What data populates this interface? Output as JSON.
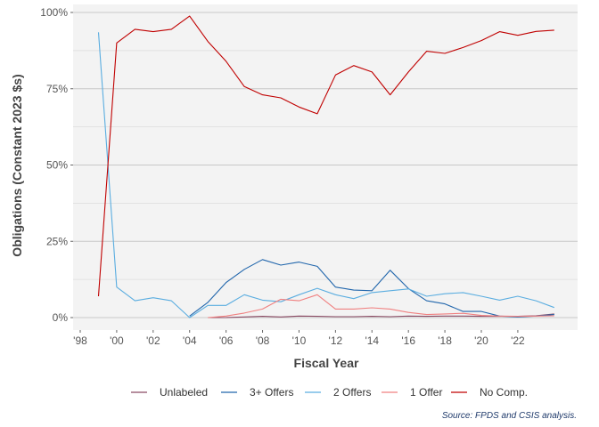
{
  "chart_data": {
    "type": "line",
    "xlabel": "Fiscal Year",
    "ylabel": "Obligations (Constant 2023 $s)",
    "source": "Source: FPDS and CSIS analysis.",
    "xlim": [
      1998,
      2025
    ],
    "ylim": [
      0,
      1
    ],
    "x_ticks": [
      1998,
      2000,
      2002,
      2004,
      2006,
      2008,
      2010,
      2012,
      2014,
      2016,
      2018,
      2020,
      2022
    ],
    "x_tick_labels": [
      "'98",
      "'00",
      "'02",
      "'04",
      "'06",
      "'08",
      "'10",
      "'12",
      "'14",
      "'16",
      "'18",
      "'20",
      "'22"
    ],
    "y_ticks": [
      0,
      0.25,
      0.5,
      0.75,
      1.0
    ],
    "y_tick_labels": [
      "0%",
      "25%",
      "50%",
      "75%",
      "100%"
    ],
    "grid": true,
    "legend_position": "bottom",
    "x": [
      1999,
      2000,
      2001,
      2002,
      2003,
      2004,
      2005,
      2006,
      2007,
      2008,
      2009,
      2010,
      2011,
      2012,
      2013,
      2014,
      2015,
      2016,
      2017,
      2018,
      2019,
      2020,
      2021,
      2022,
      2023,
      2024
    ],
    "series": [
      {
        "name": "Unlabeled",
        "color": "#8a4a63",
        "values": [
          null,
          null,
          null,
          null,
          null,
          null,
          0.0,
          0.0,
          0.002,
          0.004,
          0.002,
          0.005,
          0.004,
          0.003,
          0.003,
          0.004,
          0.003,
          0.005,
          0.004,
          0.005,
          0.005,
          0.004,
          0.004,
          0.004,
          0.006,
          0.012
        ]
      },
      {
        "name": "3+ Offers",
        "color": "#2166ac",
        "values": [
          null,
          null,
          null,
          null,
          null,
          0.005,
          0.05,
          0.115,
          0.158,
          0.19,
          0.172,
          0.182,
          0.168,
          0.1,
          0.09,
          0.088,
          0.155,
          0.095,
          0.055,
          0.045,
          0.02,
          0.02,
          0.005,
          0.002,
          0.005,
          0.01
        ]
      },
      {
        "name": "2 Offers",
        "color": "#5aade0",
        "values": [
          0.935,
          0.1,
          0.055,
          0.065,
          0.055,
          0.0,
          0.04,
          0.04,
          0.075,
          0.057,
          0.052,
          0.075,
          0.096,
          0.075,
          0.062,
          0.082,
          0.088,
          0.094,
          0.07,
          0.078,
          0.082,
          0.07,
          0.057,
          0.07,
          0.055,
          0.033
        ]
      },
      {
        "name": "1 Offer",
        "color": "#f08080",
        "values": [
          null,
          null,
          null,
          null,
          null,
          null,
          0.0,
          0.005,
          0.015,
          0.028,
          0.06,
          0.055,
          0.075,
          0.028,
          0.028,
          0.032,
          0.028,
          0.017,
          0.01,
          0.012,
          0.014,
          0.007,
          0.005,
          0.004,
          0.005,
          0.006
        ]
      },
      {
        "name": "No Comp.",
        "color": "#c00000",
        "values": [
          0.07,
          0.9,
          0.945,
          0.937,
          0.945,
          0.988,
          0.905,
          0.84,
          0.757,
          0.73,
          0.72,
          0.69,
          0.668,
          0.795,
          0.826,
          0.805,
          0.73,
          0.805,
          0.873,
          0.866,
          0.885,
          0.908,
          0.937,
          0.925,
          0.938,
          0.942
        ]
      }
    ]
  }
}
